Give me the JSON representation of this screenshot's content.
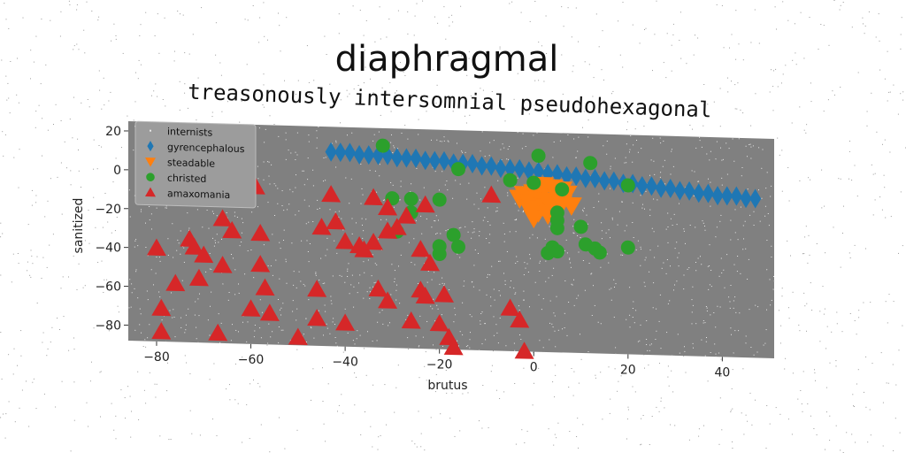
{
  "chart_data": {
    "type": "scatter",
    "title": "diaphragmal",
    "subtitle": "treasonously intersomnial pseudohexagonal",
    "xlabel": "brutus",
    "ylabel": "sanitized",
    "xlim": [
      -86,
      51
    ],
    "ylim": [
      -88,
      25
    ],
    "xticks": [
      -80,
      -60,
      -40,
      -20,
      0,
      20,
      40
    ],
    "yticks": [
      -80,
      -60,
      -40,
      -20,
      0,
      20
    ],
    "grid": false,
    "legend_position": "top-left",
    "background_color": "#808080",
    "series": [
      {
        "name": "internists",
        "marker": "dot",
        "color": "#e6e6e6",
        "points": []
      },
      {
        "name": "gyrencephalous",
        "marker": "diamond",
        "color": "#1f77b4",
        "points": [
          [
            -43,
            12
          ],
          [
            -41,
            12
          ],
          [
            -39,
            12
          ],
          [
            -37,
            11
          ],
          [
            -35,
            11
          ],
          [
            -33,
            11
          ],
          [
            -31,
            11
          ],
          [
            -29,
            10
          ],
          [
            -27,
            10
          ],
          [
            -25,
            10
          ],
          [
            -23,
            9
          ],
          [
            -21,
            9
          ],
          [
            -19,
            9
          ],
          [
            -17,
            8
          ],
          [
            -15,
            8
          ],
          [
            -13,
            8
          ],
          [
            -11,
            7
          ],
          [
            -9,
            7
          ],
          [
            -7,
            6
          ],
          [
            -5,
            6
          ],
          [
            -3,
            6
          ],
          [
            -1,
            5
          ],
          [
            1,
            5
          ],
          [
            3,
            4
          ],
          [
            5,
            4
          ],
          [
            7,
            3
          ],
          [
            9,
            3
          ],
          [
            11,
            2
          ],
          [
            13,
            2
          ],
          [
            15,
            1
          ],
          [
            17,
            1
          ],
          [
            19,
            0
          ],
          [
            21,
            0
          ],
          [
            23,
            -1
          ],
          [
            25,
            -1
          ],
          [
            27,
            -2
          ],
          [
            29,
            -2
          ],
          [
            31,
            -3
          ],
          [
            33,
            -3
          ],
          [
            35,
            -4
          ],
          [
            37,
            -4
          ],
          [
            39,
            -5
          ],
          [
            41,
            -5
          ],
          [
            43,
            -5
          ],
          [
            45,
            -6
          ],
          [
            47,
            -6
          ]
        ]
      },
      {
        "name": "steadable",
        "marker": "triangle-down",
        "color": "#ff7f0e",
        "points": [
          [
            -3,
            -9
          ],
          [
            -2,
            -7
          ],
          [
            -1,
            -11
          ],
          [
            0,
            -6
          ],
          [
            1,
            -9
          ],
          [
            2,
            -13
          ],
          [
            1,
            -16
          ],
          [
            0,
            -19
          ],
          [
            2,
            -5
          ],
          [
            3,
            -10
          ],
          [
            4,
            -14
          ],
          [
            5,
            -8
          ],
          [
            6,
            -11
          ],
          [
            7,
            -6
          ],
          [
            8,
            -12
          ],
          [
            6,
            -4
          ],
          [
            4,
            -3
          ],
          [
            3,
            -17
          ],
          [
            -1,
            -14
          ],
          [
            2,
            -2
          ]
        ]
      },
      {
        "name": "christed",
        "marker": "circle",
        "color": "#2ca02c",
        "points": [
          [
            -32,
            16
          ],
          [
            1,
            13
          ],
          [
            12,
            10
          ],
          [
            -16,
            5
          ],
          [
            -5,
            0
          ],
          [
            0,
            -1
          ],
          [
            6,
            -4
          ],
          [
            20,
            -1
          ],
          [
            -30,
            -11
          ],
          [
            -26,
            -11
          ],
          [
            -20,
            -11
          ],
          [
            -26,
            -18
          ],
          [
            5,
            -16
          ],
          [
            5,
            -20
          ],
          [
            5,
            -24
          ],
          [
            10,
            -23
          ],
          [
            -29,
            -28
          ],
          [
            -17,
            -29
          ],
          [
            -20,
            -35
          ],
          [
            -16,
            -35
          ],
          [
            -20,
            -39
          ],
          [
            11,
            -32
          ],
          [
            13,
            -34
          ],
          [
            14,
            -36
          ],
          [
            4,
            -34
          ],
          [
            5,
            -36
          ],
          [
            3,
            -37
          ],
          [
            20,
            -33
          ]
        ]
      },
      {
        "name": "amaxomania",
        "marker": "triangle-up",
        "color": "#d62728",
        "points": [
          [
            -73,
            -13
          ],
          [
            -59,
            -7
          ],
          [
            -61,
            -11
          ],
          [
            -43,
            -10
          ],
          [
            -34,
            -11
          ],
          [
            -31,
            -16
          ],
          [
            -23,
            -14
          ],
          [
            -9,
            -8
          ],
          [
            -66,
            -24
          ],
          [
            -64,
            -30
          ],
          [
            -58,
            -31
          ],
          [
            -45,
            -27
          ],
          [
            -42,
            -24
          ],
          [
            -40,
            -34
          ],
          [
            -37,
            -36
          ],
          [
            -36,
            -38
          ],
          [
            -34,
            -34
          ],
          [
            -31,
            -28
          ],
          [
            -29,
            -26
          ],
          [
            -27,
            -20
          ],
          [
            -24,
            -37
          ],
          [
            -22,
            -44
          ],
          [
            -80,
            -40
          ],
          [
            -73,
            -35
          ],
          [
            -72,
            -39
          ],
          [
            -70,
            -43
          ],
          [
            -66,
            -48
          ],
          [
            -58,
            -47
          ],
          [
            -76,
            -58
          ],
          [
            -71,
            -55
          ],
          [
            -57,
            -59
          ],
          [
            -46,
            -59
          ],
          [
            -33,
            -58
          ],
          [
            -31,
            -64
          ],
          [
            -24,
            -58
          ],
          [
            -23,
            -61
          ],
          [
            -19,
            -60
          ],
          [
            -79,
            -71
          ],
          [
            -60,
            -70
          ],
          [
            -56,
            -72
          ],
          [
            -46,
            -74
          ],
          [
            -40,
            -76
          ],
          [
            -26,
            -74
          ],
          [
            -20,
            -75
          ],
          [
            -18,
            -82
          ],
          [
            -5,
            -66
          ],
          [
            -3,
            -72
          ],
          [
            -79,
            -83
          ],
          [
            -67,
            -83
          ],
          [
            -50,
            -84
          ],
          [
            -17,
            -87
          ],
          [
            -2,
            -88
          ]
        ]
      }
    ]
  }
}
